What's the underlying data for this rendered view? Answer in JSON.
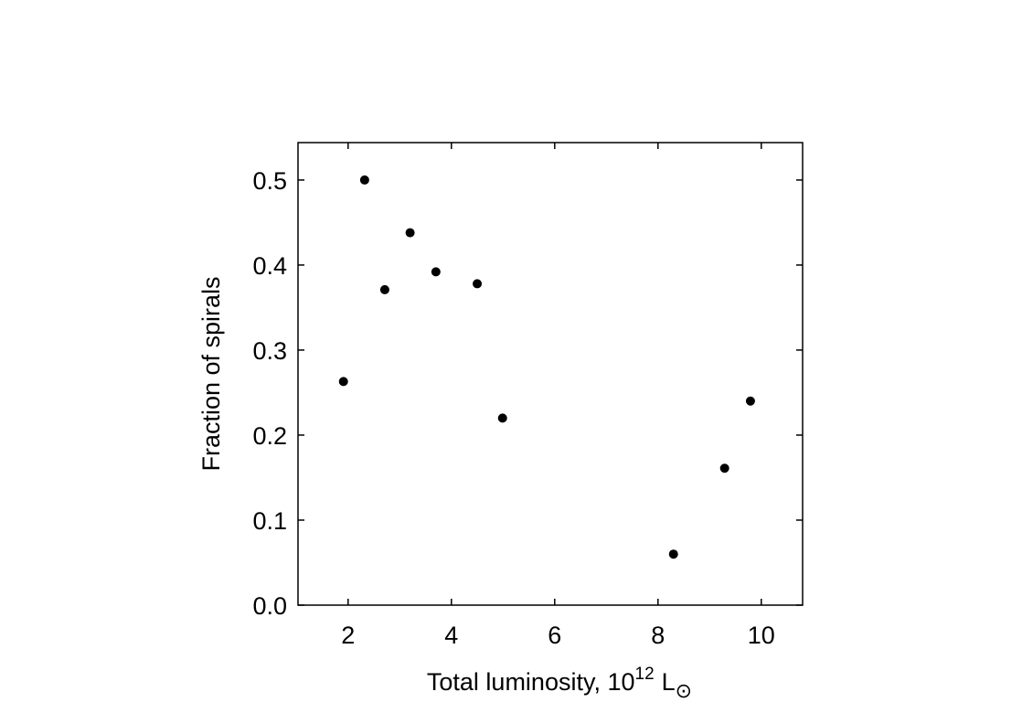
{
  "chart_data": {
    "type": "scatter",
    "xlabel": {
      "text": "Total luminosity, 10",
      "sup": "12",
      "unit": "L",
      "unit_sub": "⊙"
    },
    "ylabel": "Fraction of spirals",
    "color": "#000000",
    "x": [
      1.91,
      2.32,
      2.71,
      3.2,
      3.7,
      4.5,
      4.99,
      8.3,
      9.29,
      9.79
    ],
    "values": [
      0.263,
      0.5,
      0.371,
      0.438,
      0.392,
      0.378,
      0.22,
      0.06,
      0.161,
      0.24
    ],
    "xlim": [
      1.03,
      10.8
    ],
    "ylim": [
      0,
      0.544
    ],
    "xticks": [
      2,
      4,
      6,
      8,
      10
    ],
    "yticks": [
      {
        "value": 0,
        "label": "0.0"
      },
      {
        "value": 0.1,
        "label": "0.1"
      },
      {
        "value": 0.2,
        "label": "0.2"
      },
      {
        "value": 0.3,
        "label": "0.3"
      },
      {
        "value": 0.4,
        "label": "0.4"
      },
      {
        "value": 0.5,
        "label": "0.5"
      }
    ]
  }
}
